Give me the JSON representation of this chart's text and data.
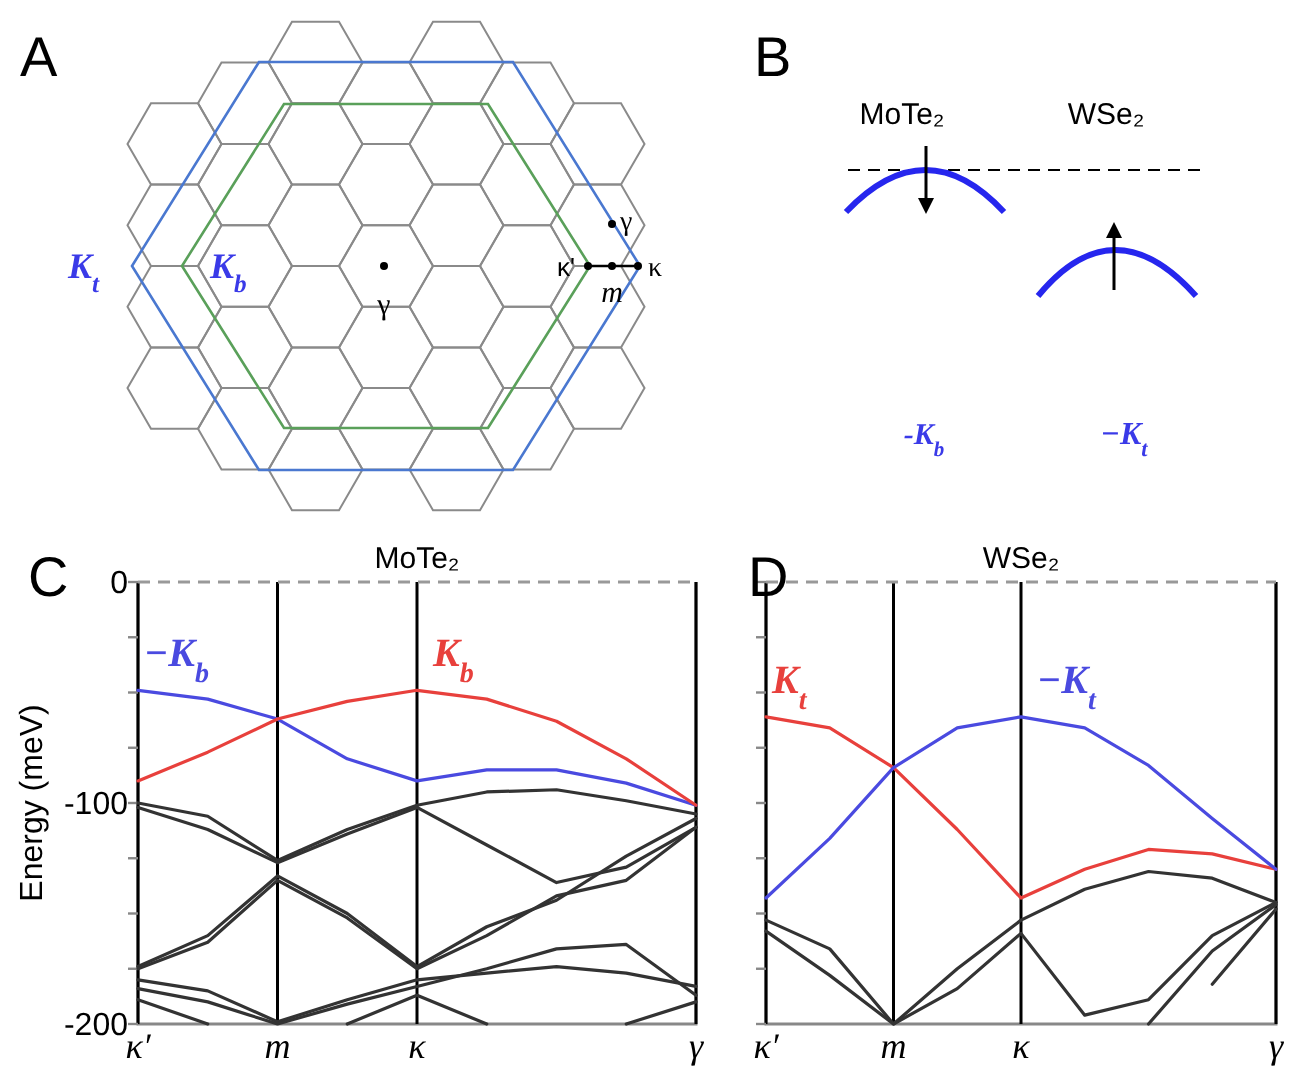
{
  "chart_data": [
    {
      "type": "other",
      "annotations": [
        "A",
        "K$_{t}$",
        "K$_{b}$",
        "γ",
        "γ",
        "κ'",
        "m",
        "κ"
      ]
    },
    {
      "type": "other",
      "annotations": [
        "B",
        "MoTe₂",
        "WSe₂",
        "-K$_{b}$",
        "−K$_{t}$"
      ]
    },
    {
      "type": "line",
      "title": "MoTe₂",
      "ylabel": "Energy (meV)",
      "annotations": [
        "C"
      ],
      "categories": [
        "κ′",
        null,
        "m",
        null,
        "κ",
        null,
        null,
        null,
        "γ"
      ],
      "ylim": [
        -200,
        0
      ],
      "yticks": [
        -200,
        {
          "value": -175,
          "label": null
        },
        {
          "value": -150,
          "label": null
        },
        {
          "value": -125,
          "label": null
        },
        -100,
        {
          "value": -75,
          "label": null
        },
        {
          "value": -50,
          "label": null
        },
        {
          "value": -25,
          "label": null
        },
        0
      ],
      "grid": "x",
      "ref_lines": [
        {
          "axis": "y",
          "value": 0,
          "color": "#999999",
          "line_style": "dashed"
        }
      ],
      "series": [
        {
          "name": "−K$_{b}$",
          "color": "#4a4ae0",
          "values": [
            -49,
            -53,
            -62,
            -80,
            -90,
            -85,
            -85,
            -91,
            -101
          ]
        },
        {
          "name": "K$_{b}$",
          "color": "#e8403c",
          "values": [
            -90,
            -77,
            -62,
            -54,
            -49,
            -53,
            -63,
            -80,
            -101
          ]
        },
        {
          "color": "#333333",
          "values": [
            -100,
            -106,
            -126,
            -112,
            -101,
            -95,
            -94,
            -99,
            -105
          ]
        },
        {
          "color": "#333333",
          "values": [
            -102,
            -112,
            -127,
            -114,
            -102,
            -119,
            -136,
            -129,
            -111
          ]
        },
        {
          "color": "#333333",
          "values": [
            -174,
            -160,
            -133,
            -150,
            -174,
            -156,
            -144,
            -124,
            -107
          ]
        },
        {
          "color": "#333333",
          "values": [
            -175,
            -163,
            -135,
            -152,
            -175,
            -160,
            -142,
            -135,
            -111
          ]
        },
        {
          "color": "#333333",
          "values": [
            -180,
            -185,
            -199,
            -189,
            -180,
            -177,
            -174,
            -177,
            -183
          ]
        },
        {
          "color": "#333333",
          "values": [
            -184,
            -190,
            -200,
            -191,
            -183,
            -175,
            -166,
            -164,
            -187
          ]
        },
        {
          "color": "#333333",
          "values": [
            -189,
            -200,
            null,
            null,
            null,
            null,
            null,
            null,
            null
          ]
        },
        {
          "color": "#333333",
          "values": [
            null,
            null,
            null,
            -200,
            -187,
            -200,
            null,
            null,
            null
          ]
        },
        {
          "color": "#333333",
          "values": [
            null,
            null,
            null,
            null,
            null,
            null,
            null,
            -200,
            -190
          ]
        }
      ]
    },
    {
      "type": "line",
      "title": "WSe₂",
      "annotations": [
        "D"
      ],
      "tick_labels": "x",
      "categories": [
        "κ′",
        null,
        "m",
        null,
        "κ",
        null,
        null,
        null,
        "γ"
      ],
      "ylim": [
        -200,
        0
      ],
      "yticks": [
        -200,
        -175,
        -150,
        -125,
        -100,
        -75,
        -50,
        -25,
        0
      ],
      "grid": "x",
      "ref_lines": [
        {
          "axis": "y",
          "value": 0,
          "color": "#999999",
          "line_style": "dashed"
        }
      ],
      "series": [
        {
          "name": "K$_{t}$",
          "color": "#e8403c",
          "values": [
            -61,
            -66,
            -84,
            -112,
            -143,
            -130,
            -121,
            -123,
            -130
          ]
        },
        {
          "name": "−K$_{t}$",
          "color": "#4a4ae0",
          "values": [
            -143,
            -116,
            -84,
            -66,
            -61,
            -66,
            -83,
            -107,
            -130
          ]
        },
        {
          "color": "#333333",
          "values": [
            -153,
            -166,
            -200,
            -175,
            -153,
            -139,
            -131,
            -134,
            -145
          ]
        },
        {
          "color": "#333333",
          "values": [
            -158,
            -178,
            -200,
            -184,
            -159,
            -196,
            -189,
            -160,
            -145
          ]
        },
        {
          "color": "#333333",
          "values": [
            null,
            null,
            null,
            null,
            null,
            null,
            -200,
            -167,
            -146
          ]
        },
        {
          "color": "#333333",
          "values": [
            null,
            null,
            null,
            null,
            null,
            null,
            null,
            -182,
            -148
          ]
        }
      ]
    }
  ]
}
